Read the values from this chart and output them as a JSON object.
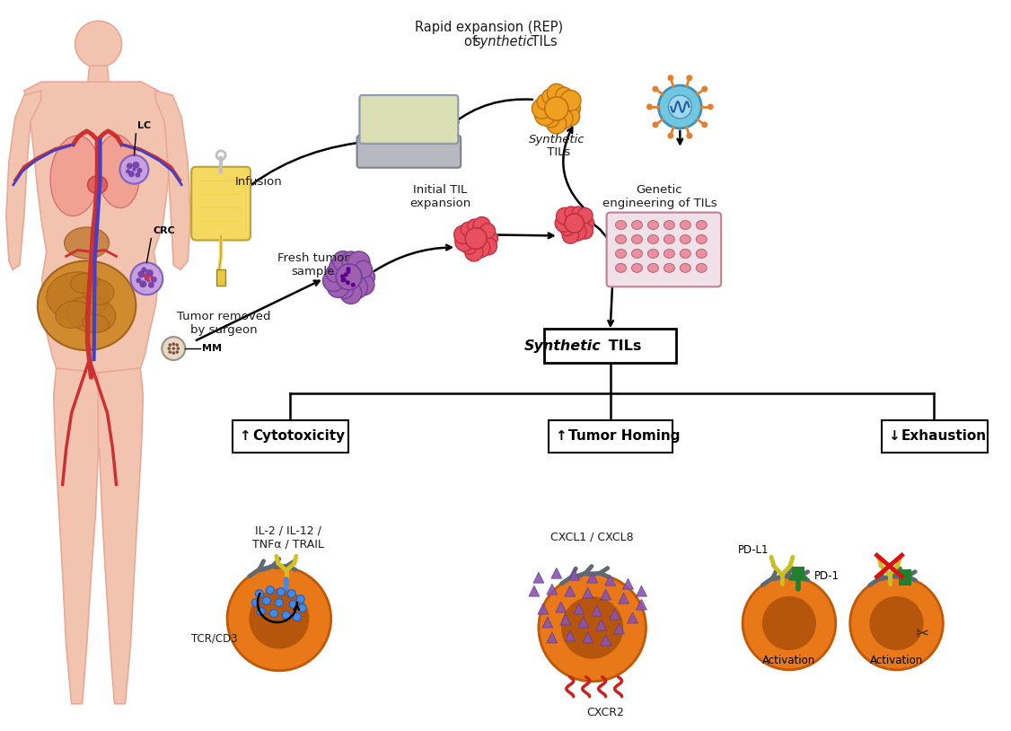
{
  "bg_color": "#ffffff",
  "body_color": "#f2c4b0",
  "body_outline": "#e8a898",
  "text_color": "#1a1a1a",
  "orange_cell_color": "#e87818",
  "orange_cell_dark": "#a05010",
  "blue_dot_color": "#4488e8",
  "purple_triangle_color": "#8855b0",
  "gray_receptor_color": "#707080",
  "labels": {
    "infusion": "Infusion",
    "fresh_tumor": "Fresh tumor\nsample",
    "tumor_removed": "Tumor removed\nby surgeon",
    "initial_til": "Initial TIL\nexpansion",
    "genetic_eng": "Genetic\nengineering of TILs",
    "synthetic_tils_italic": "Synthetic",
    "synthetic_tils_plain": " TILs",
    "synthetic_tils_box_italic": "Synthetic",
    "synthetic_tils_box_plain": " TILs",
    "cytotoxicity": "Cytotoxicity",
    "tumor_homing": "Tumor Homing",
    "exhaustion": "Exhaustion",
    "il2": "IL-2 / IL-12 /\nTNFα / TRAIL",
    "tcr_cd3": "TCR/CD3",
    "cxcl": "CXCL1 / CXCL8",
    "cxcr2": "CXCR2",
    "pd_l1": "PD-L1",
    "pd_1": "PD-1",
    "activation": "Activation",
    "lc": "LC",
    "crc": "CRC",
    "mm": "MM",
    "rep_line1": "Rapid expansion (REP)",
    "rep_line2_pre": "of ",
    "rep_line2_italic": "synthetic",
    "rep_line2_post": " TILs"
  }
}
